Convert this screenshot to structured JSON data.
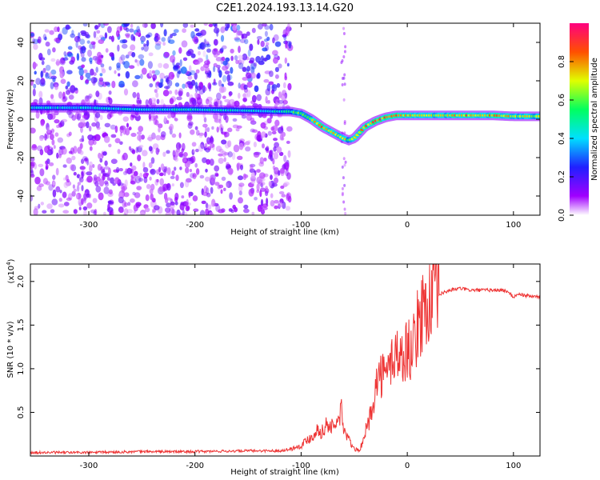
{
  "title": "C2E1.2024.193.13.14.G20",
  "chart_data": [
    {
      "type": "heatmap",
      "xlabel": "Height of straight line (km)",
      "ylabel": "Frequency (Hz)",
      "xlim": [
        -355,
        125
      ],
      "ylim": [
        -50,
        50
      ],
      "xticks": [
        -300,
        -200,
        -100,
        0,
        100
      ],
      "yticks": [
        -40,
        -20,
        0,
        20,
        40
      ],
      "colorbar": {
        "label": "Normalized spectral amplitude",
        "ticks": [
          0.0,
          0.2,
          0.4,
          0.6,
          0.8
        ],
        "range": [
          0,
          1
        ]
      },
      "ridge": {
        "x": [
          -355,
          -300,
          -250,
          -200,
          -150,
          -120,
          -110,
          -100,
          -90,
          -80,
          -70,
          -60,
          -55,
          -50,
          -45,
          -40,
          -30,
          -20,
          -10,
          0,
          20,
          40,
          60,
          80,
          100,
          125
        ],
        "y": [
          6,
          6,
          5,
          5,
          4.5,
          4,
          4,
          3,
          0,
          -4,
          -7,
          -10,
          -11,
          -10,
          -7,
          -4,
          -1,
          1,
          2,
          2,
          2,
          2,
          2,
          2,
          1.5,
          1.5
        ],
        "amplitude": [
          0.4,
          0.4,
          0.42,
          0.45,
          0.42,
          0.45,
          0.5,
          0.6,
          0.7,
          0.75,
          0.8,
          0.7,
          0.6,
          0.65,
          0.75,
          0.8,
          0.85,
          0.85,
          0.8,
          0.75,
          0.7,
          0.72,
          0.8,
          0.75,
          0.7,
          0.65
        ]
      }
    },
    {
      "type": "line",
      "xlabel": "Height of straight line (km)",
      "ylabel": "SNR (10 * v/v)",
      "multiplier": "(x10",
      "multiplier_exp": "4",
      "multiplier_close": ")",
      "xlim": [
        -355,
        125
      ],
      "ylim": [
        0,
        2.2
      ],
      "xticks": [
        -300,
        -200,
        -100,
        0,
        100
      ],
      "yticks": [
        0.5,
        1.0,
        1.5,
        2.0
      ],
      "series": [
        {
          "x": [
            -355,
            -300,
            -250,
            -200,
            -150,
            -120,
            -110,
            -100,
            -95,
            -90,
            -85,
            -80,
            -75,
            -70,
            -65,
            -62,
            -60,
            -55,
            -50,
            -45,
            -40,
            -35,
            -30,
            -25,
            -20,
            -15,
            -10,
            -5,
            0,
            5,
            10,
            15,
            20,
            25,
            30,
            40,
            50,
            60,
            70,
            80,
            90,
            95,
            100,
            105,
            110,
            125
          ],
          "y": [
            0.04,
            0.04,
            0.05,
            0.05,
            0.06,
            0.06,
            0.08,
            0.12,
            0.18,
            0.22,
            0.3,
            0.28,
            0.38,
            0.32,
            0.4,
            0.55,
            0.3,
            0.18,
            0.08,
            0.06,
            0.25,
            0.45,
            0.8,
            0.95,
            0.9,
            1.1,
            1.2,
            1.1,
            1.25,
            1.2,
            1.5,
            1.7,
            1.75,
            1.8,
            1.85,
            1.9,
            1.92,
            1.9,
            1.9,
            1.9,
            1.9,
            1.88,
            1.82,
            1.86,
            1.84,
            1.82
          ]
        }
      ]
    }
  ]
}
